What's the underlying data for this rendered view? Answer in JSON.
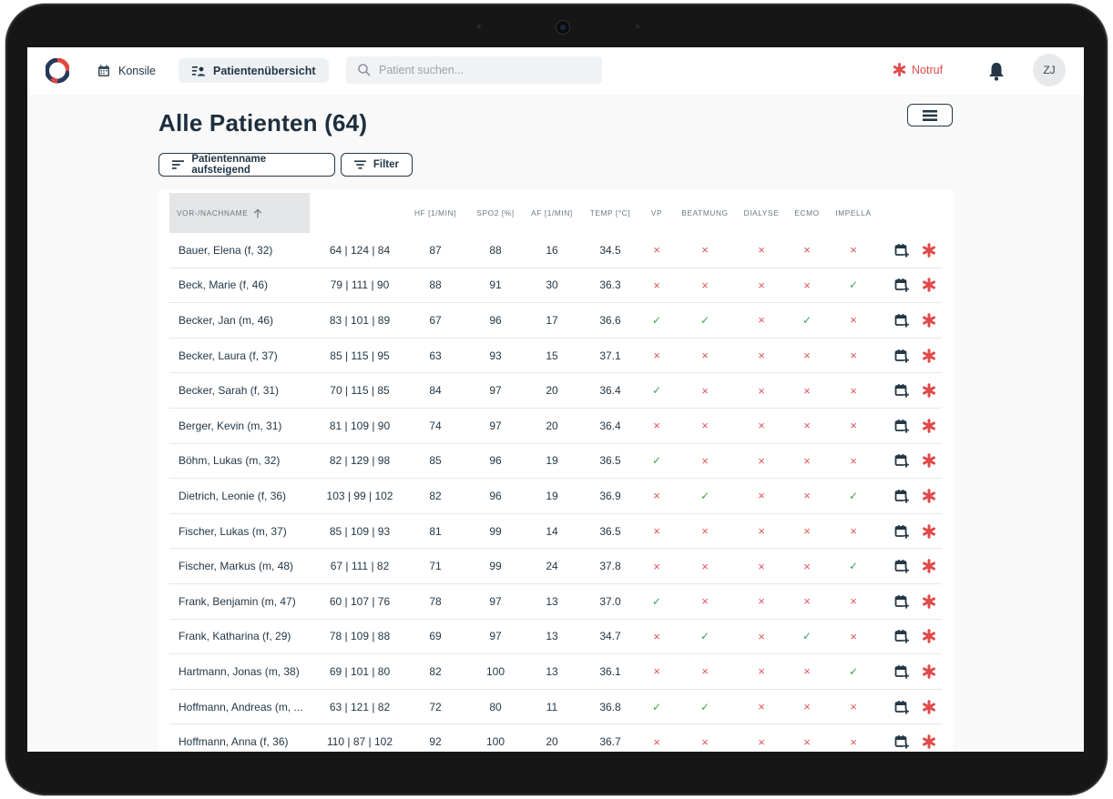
{
  "nav": {
    "konsile": "Konsile",
    "patientenuebersicht": "Patientenübersicht",
    "search_placeholder": "Patient suchen...",
    "notruf": "Notruf",
    "avatar_initials": "ZJ"
  },
  "page": {
    "title": "Alle Patienten (64)",
    "sort_button": "Patientenname aufsteigend",
    "filter_button": "Filter"
  },
  "table": {
    "columns": {
      "name": "VOR-/NACHNAME",
      "hf": "HF [1/MIN]",
      "spo2": "SPO2 [%]",
      "af": "AF [1/MIN]",
      "temp": "TEMP [°C]",
      "vp": "VP",
      "beatmung": "BEATMUNG",
      "dialyse": "DIALYSE",
      "ecmo": "ECMO",
      "impella": "IMPELLA"
    },
    "rows": [
      {
        "name": "Bauer, Elena (f, 32)",
        "bp": "64 | 124 | 84",
        "hf": "87",
        "spo2": "88",
        "af": "16",
        "temp": "34.5",
        "vp": false,
        "beatmung": false,
        "dialyse": false,
        "ecmo": false,
        "impella": false
      },
      {
        "name": "Beck, Marie (f, 46)",
        "bp": "79 | 111 | 90",
        "hf": "88",
        "spo2": "91",
        "af": "30",
        "temp": "36.3",
        "vp": false,
        "beatmung": false,
        "dialyse": false,
        "ecmo": false,
        "impella": true
      },
      {
        "name": "Becker, Jan (m, 46)",
        "bp": "83 | 101 | 89",
        "hf": "67",
        "spo2": "96",
        "af": "17",
        "temp": "36.6",
        "vp": true,
        "beatmung": true,
        "dialyse": false,
        "ecmo": true,
        "impella": false
      },
      {
        "name": "Becker, Laura (f, 37)",
        "bp": "85 | 115 | 95",
        "hf": "63",
        "spo2": "93",
        "af": "15",
        "temp": "37.1",
        "vp": false,
        "beatmung": false,
        "dialyse": false,
        "ecmo": false,
        "impella": false
      },
      {
        "name": "Becker, Sarah (f, 31)",
        "bp": "70 | 115 | 85",
        "hf": "84",
        "spo2": "97",
        "af": "20",
        "temp": "36.4",
        "vp": true,
        "beatmung": false,
        "dialyse": false,
        "ecmo": false,
        "impella": false
      },
      {
        "name": "Berger, Kevin (m, 31)",
        "bp": "81 | 109 | 90",
        "hf": "74",
        "spo2": "97",
        "af": "20",
        "temp": "36.4",
        "vp": false,
        "beatmung": false,
        "dialyse": false,
        "ecmo": false,
        "impella": false
      },
      {
        "name": "Böhm, Lukas (m, 32)",
        "bp": "82 | 129 | 98",
        "hf": "85",
        "spo2": "96",
        "af": "19",
        "temp": "36.5",
        "vp": true,
        "beatmung": false,
        "dialyse": false,
        "ecmo": false,
        "impella": false
      },
      {
        "name": "Dietrich, Leonie (f, 36)",
        "bp": "103 | 99 | 102",
        "hf": "82",
        "spo2": "96",
        "af": "19",
        "temp": "36.9",
        "vp": false,
        "beatmung": true,
        "dialyse": false,
        "ecmo": false,
        "impella": true
      },
      {
        "name": "Fischer, Lukas (m, 37)",
        "bp": "85 | 109 | 93",
        "hf": "81",
        "spo2": "99",
        "af": "14",
        "temp": "36.5",
        "vp": false,
        "beatmung": false,
        "dialyse": false,
        "ecmo": false,
        "impella": false
      },
      {
        "name": "Fischer, Markus (m, 48)",
        "bp": "67 | 111 | 82",
        "hf": "71",
        "spo2": "99",
        "af": "24",
        "temp": "37.8",
        "vp": false,
        "beatmung": false,
        "dialyse": false,
        "ecmo": false,
        "impella": true
      },
      {
        "name": "Frank, Benjamin (m, 47)",
        "bp": "60 | 107 | 76",
        "hf": "78",
        "spo2": "97",
        "af": "13",
        "temp": "37.0",
        "vp": true,
        "beatmung": false,
        "dialyse": false,
        "ecmo": false,
        "impella": false
      },
      {
        "name": "Frank, Katharina (f, 29)",
        "bp": "78 | 109 | 88",
        "hf": "69",
        "spo2": "97",
        "af": "13",
        "temp": "34.7",
        "vp": false,
        "beatmung": true,
        "dialyse": false,
        "ecmo": true,
        "impella": false
      },
      {
        "name": "Hartmann, Jonas (m, 38)",
        "bp": "69 | 101 | 80",
        "hf": "82",
        "spo2": "100",
        "af": "13",
        "temp": "36.1",
        "vp": false,
        "beatmung": false,
        "dialyse": false,
        "ecmo": false,
        "impella": true
      },
      {
        "name": "Hoffmann, Andreas (m, ...",
        "bp": "63 | 121 | 82",
        "hf": "72",
        "spo2": "80",
        "af": "11",
        "temp": "36.8",
        "vp": true,
        "beatmung": true,
        "dialyse": false,
        "ecmo": false,
        "impella": false
      },
      {
        "name": "Hoffmann, Anna (f, 36)",
        "bp": "110 | 87 | 102",
        "hf": "92",
        "spo2": "100",
        "af": "20",
        "temp": "36.7",
        "vp": false,
        "beatmung": false,
        "dialyse": false,
        "ecmo": false,
        "impella": false
      }
    ]
  }
}
